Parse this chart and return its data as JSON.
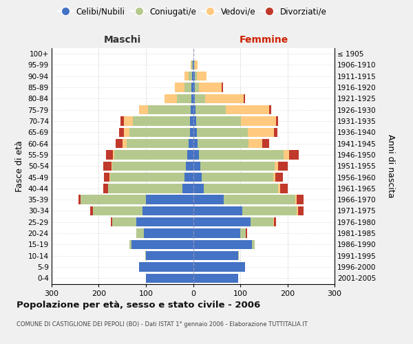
{
  "age_groups": [
    "0-4",
    "5-9",
    "10-14",
    "15-19",
    "20-24",
    "25-29",
    "30-34",
    "35-39",
    "40-44",
    "45-49",
    "50-54",
    "55-59",
    "60-64",
    "65-69",
    "70-74",
    "75-79",
    "80-84",
    "85-89",
    "90-94",
    "95-99",
    "100+"
  ],
  "birth_years": [
    "2001-2005",
    "1996-2000",
    "1991-1995",
    "1986-1990",
    "1981-1985",
    "1976-1980",
    "1971-1975",
    "1966-1970",
    "1961-1965",
    "1956-1960",
    "1951-1955",
    "1946-1950",
    "1941-1945",
    "1936-1940",
    "1931-1935",
    "1926-1930",
    "1921-1925",
    "1916-1920",
    "1911-1915",
    "1906-1910",
    "≤ 1905"
  ],
  "male_celibe": [
    100,
    115,
    100,
    130,
    105,
    120,
    108,
    100,
    22,
    18,
    16,
    12,
    9,
    7,
    6,
    5,
    3,
    3,
    2,
    1,
    0
  ],
  "male_coniugato": [
    0,
    0,
    2,
    5,
    15,
    52,
    105,
    138,
    158,
    158,
    155,
    155,
    132,
    128,
    122,
    90,
    32,
    15,
    8,
    2,
    0
  ],
  "male_vedovo": [
    0,
    0,
    0,
    0,
    0,
    0,
    0,
    0,
    1,
    1,
    2,
    3,
    8,
    12,
    18,
    20,
    25,
    20,
    8,
    2,
    0
  ],
  "male_divorziato": [
    0,
    0,
    0,
    0,
    1,
    3,
    5,
    5,
    10,
    12,
    18,
    15,
    15,
    10,
    8,
    0,
    0,
    0,
    0,
    0,
    0
  ],
  "female_nubile": [
    95,
    110,
    95,
    125,
    100,
    122,
    105,
    65,
    22,
    18,
    15,
    12,
    10,
    8,
    6,
    5,
    4,
    3,
    3,
    2,
    0
  ],
  "female_coniugata": [
    0,
    0,
    2,
    5,
    12,
    48,
    115,
    152,
    158,
    152,
    158,
    180,
    108,
    108,
    95,
    65,
    22,
    10,
    5,
    2,
    0
  ],
  "female_vedova": [
    0,
    0,
    0,
    0,
    0,
    1,
    2,
    3,
    5,
    5,
    8,
    12,
    28,
    55,
    75,
    92,
    82,
    48,
    20,
    5,
    1
  ],
  "female_divorziata": [
    0,
    0,
    0,
    0,
    2,
    5,
    12,
    15,
    15,
    15,
    20,
    20,
    15,
    8,
    5,
    4,
    2,
    2,
    0,
    0,
    0
  ],
  "color_celibe": "#4472c4",
  "color_coniugato": "#b5c98e",
  "color_vedovo": "#ffc97f",
  "color_divorziato": "#c0392b",
  "xlim": 300,
  "title": "Popolazione per età, sesso e stato civile - 2006",
  "subtitle": "COMUNE DI CASTIGLIONE DEI PEPOLI (BO) - Dati ISTAT 1° gennaio 2006 - Elaborazione TUTTITALIA.IT",
  "ylabel_left": "Fasce di età",
  "ylabel_right": "Anni di nascita",
  "label_maschi": "Maschi",
  "label_femmine": "Femmine",
  "legend_labels": [
    "Celibi/Nubili",
    "Coniugati/e",
    "Vedovi/e",
    "Divorziati/e"
  ],
  "bg_color": "#f0f0f0",
  "plot_bg": "#ffffff",
  "grid_color": "#cccccc"
}
